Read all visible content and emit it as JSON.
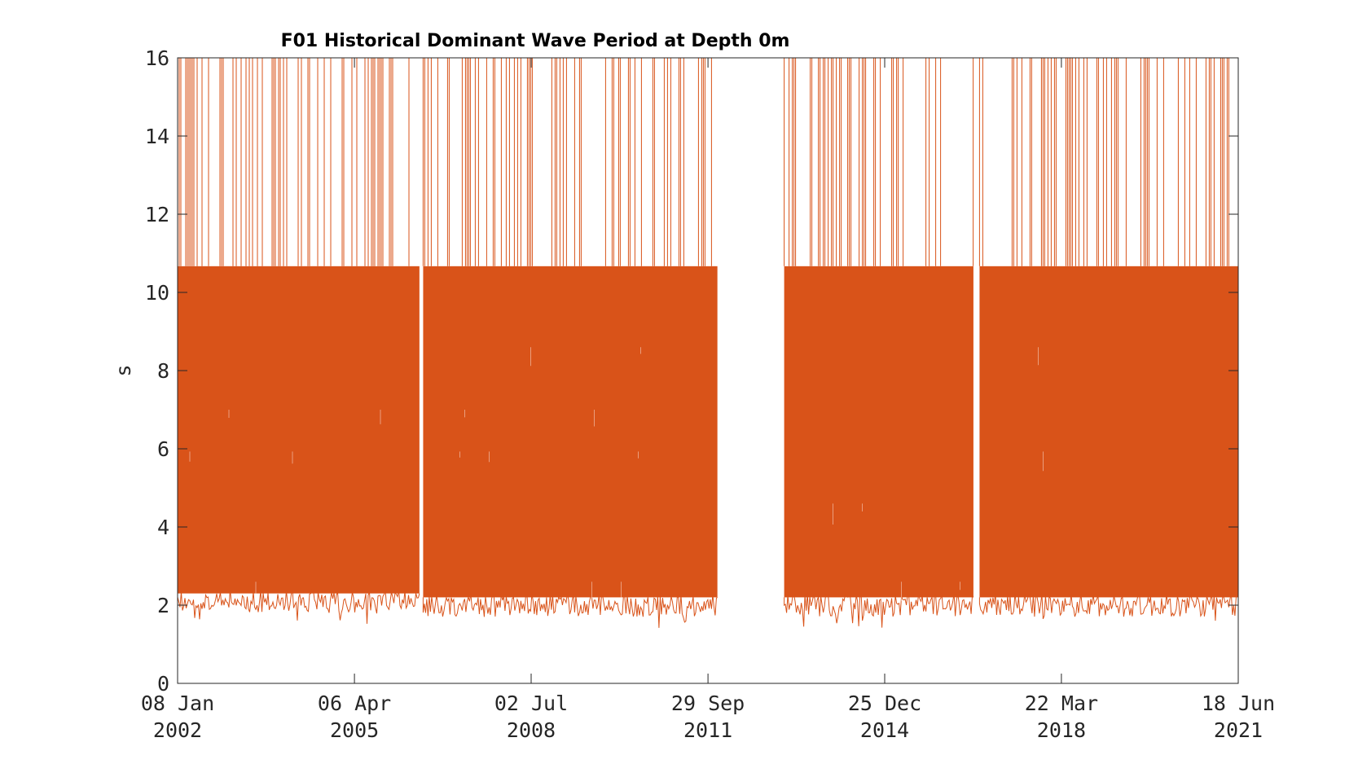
{
  "chart_data": {
    "type": "line",
    "title": "F01 Historical Dominant Wave Period at Depth 0m",
    "xlabel": "",
    "ylabel": "s",
    "ylim": [
      0,
      16
    ],
    "xlim": [
      "2002-01-08",
      "2021-06-18"
    ],
    "yticks": [
      "0",
      "2",
      "4",
      "6",
      "8",
      "10",
      "12",
      "14",
      "16"
    ],
    "xticks": [
      {
        "date": "2002-01-08",
        "day": "08 Jan",
        "year": "2002"
      },
      {
        "date": "2005-04-06",
        "day": "06 Apr",
        "year": "2005"
      },
      {
        "date": "2008-07-02",
        "day": "02 Jul",
        "year": "2008"
      },
      {
        "date": "2011-09-29",
        "day": "29 Sep",
        "year": "2011"
      },
      {
        "date": "2014-12-25",
        "day": "25 Dec",
        "year": "2014"
      },
      {
        "date": "2018-03-22",
        "day": "22 Mar",
        "year": "2018"
      },
      {
        "date": "2021-06-18",
        "day": "18 Jun",
        "year": "2021"
      }
    ],
    "grid": false,
    "series": [
      {
        "color": "#d95319",
        "data_segments": [
          {
            "start": "2002-01-08",
            "end": "2006-06-15",
            "typical_min": 1.8,
            "typical_max": 10.67,
            "peak": 16
          },
          {
            "start": "2006-07-10",
            "end": "2011-12-01",
            "typical_min": 1.7,
            "typical_max": 10.67,
            "peak": 16
          },
          {
            "start": "2013-02-20",
            "end": "2016-08-10",
            "typical_min": 1.7,
            "typical_max": 10.67,
            "peak": 16
          },
          {
            "start": "2016-09-20",
            "end": "2021-06-18",
            "typical_min": 1.7,
            "typical_max": 10.67,
            "peak": 16
          }
        ],
        "discrete_levels": [
          2,
          4,
          5.33,
          6.4,
          8,
          10.67,
          16
        ],
        "gaps": [
          {
            "start": "2006-06-15",
            "end": "2006-07-10"
          },
          {
            "start": "2011-12-01",
            "end": "2013-02-20"
          },
          {
            "start": "2016-08-10",
            "end": "2016-09-20"
          }
        ]
      }
    ]
  }
}
